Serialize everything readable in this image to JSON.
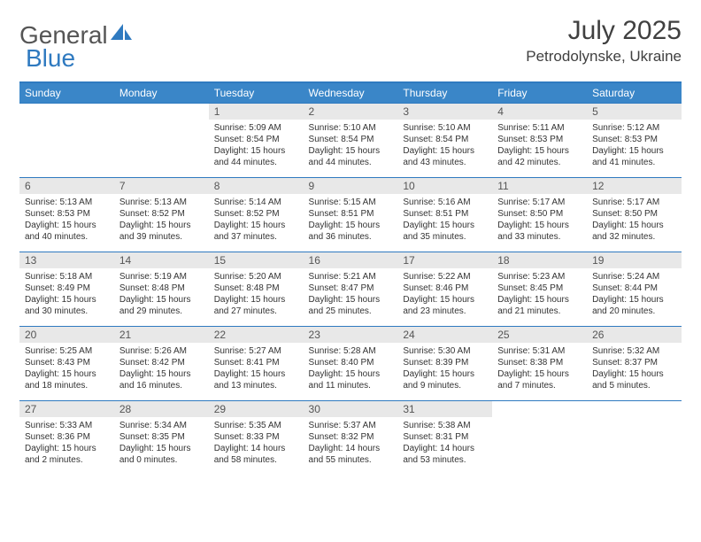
{
  "logo": {
    "word1": "General",
    "word2": "Blue"
  },
  "title": "July 2025",
  "location": "Petrodolynske, Ukraine",
  "colors": {
    "header_bg": "#3a86c8",
    "border": "#2f7ac0",
    "daynum_bg": "#e8e8e8",
    "text": "#333333",
    "logo_gray": "#555555",
    "logo_blue": "#2f7ac0",
    "white": "#ffffff"
  },
  "typography": {
    "title_fontsize": 30,
    "location_fontsize": 17,
    "logo_fontsize": 28,
    "weekday_fontsize": 12,
    "daynum_fontsize": 12,
    "body_fontsize": 10
  },
  "layout": {
    "cols": 7,
    "rows": 5,
    "first_weekday_index": 2
  },
  "weekdays": [
    "Sunday",
    "Monday",
    "Tuesday",
    "Wednesday",
    "Thursday",
    "Friday",
    "Saturday"
  ],
  "days": [
    {
      "n": 1,
      "sunrise": "5:09 AM",
      "sunset": "8:54 PM",
      "daylight": "15 hours and 44 minutes."
    },
    {
      "n": 2,
      "sunrise": "5:10 AM",
      "sunset": "8:54 PM",
      "daylight": "15 hours and 44 minutes."
    },
    {
      "n": 3,
      "sunrise": "5:10 AM",
      "sunset": "8:54 PM",
      "daylight": "15 hours and 43 minutes."
    },
    {
      "n": 4,
      "sunrise": "5:11 AM",
      "sunset": "8:53 PM",
      "daylight": "15 hours and 42 minutes."
    },
    {
      "n": 5,
      "sunrise": "5:12 AM",
      "sunset": "8:53 PM",
      "daylight": "15 hours and 41 minutes."
    },
    {
      "n": 6,
      "sunrise": "5:13 AM",
      "sunset": "8:53 PM",
      "daylight": "15 hours and 40 minutes."
    },
    {
      "n": 7,
      "sunrise": "5:13 AM",
      "sunset": "8:52 PM",
      "daylight": "15 hours and 39 minutes."
    },
    {
      "n": 8,
      "sunrise": "5:14 AM",
      "sunset": "8:52 PM",
      "daylight": "15 hours and 37 minutes."
    },
    {
      "n": 9,
      "sunrise": "5:15 AM",
      "sunset": "8:51 PM",
      "daylight": "15 hours and 36 minutes."
    },
    {
      "n": 10,
      "sunrise": "5:16 AM",
      "sunset": "8:51 PM",
      "daylight": "15 hours and 35 minutes."
    },
    {
      "n": 11,
      "sunrise": "5:17 AM",
      "sunset": "8:50 PM",
      "daylight": "15 hours and 33 minutes."
    },
    {
      "n": 12,
      "sunrise": "5:17 AM",
      "sunset": "8:50 PM",
      "daylight": "15 hours and 32 minutes."
    },
    {
      "n": 13,
      "sunrise": "5:18 AM",
      "sunset": "8:49 PM",
      "daylight": "15 hours and 30 minutes."
    },
    {
      "n": 14,
      "sunrise": "5:19 AM",
      "sunset": "8:48 PM",
      "daylight": "15 hours and 29 minutes."
    },
    {
      "n": 15,
      "sunrise": "5:20 AM",
      "sunset": "8:48 PM",
      "daylight": "15 hours and 27 minutes."
    },
    {
      "n": 16,
      "sunrise": "5:21 AM",
      "sunset": "8:47 PM",
      "daylight": "15 hours and 25 minutes."
    },
    {
      "n": 17,
      "sunrise": "5:22 AM",
      "sunset": "8:46 PM",
      "daylight": "15 hours and 23 minutes."
    },
    {
      "n": 18,
      "sunrise": "5:23 AM",
      "sunset": "8:45 PM",
      "daylight": "15 hours and 21 minutes."
    },
    {
      "n": 19,
      "sunrise": "5:24 AM",
      "sunset": "8:44 PM",
      "daylight": "15 hours and 20 minutes."
    },
    {
      "n": 20,
      "sunrise": "5:25 AM",
      "sunset": "8:43 PM",
      "daylight": "15 hours and 18 minutes."
    },
    {
      "n": 21,
      "sunrise": "5:26 AM",
      "sunset": "8:42 PM",
      "daylight": "15 hours and 16 minutes."
    },
    {
      "n": 22,
      "sunrise": "5:27 AM",
      "sunset": "8:41 PM",
      "daylight": "15 hours and 13 minutes."
    },
    {
      "n": 23,
      "sunrise": "5:28 AM",
      "sunset": "8:40 PM",
      "daylight": "15 hours and 11 minutes."
    },
    {
      "n": 24,
      "sunrise": "5:30 AM",
      "sunset": "8:39 PM",
      "daylight": "15 hours and 9 minutes."
    },
    {
      "n": 25,
      "sunrise": "5:31 AM",
      "sunset": "8:38 PM",
      "daylight": "15 hours and 7 minutes."
    },
    {
      "n": 26,
      "sunrise": "5:32 AM",
      "sunset": "8:37 PM",
      "daylight": "15 hours and 5 minutes."
    },
    {
      "n": 27,
      "sunrise": "5:33 AM",
      "sunset": "8:36 PM",
      "daylight": "15 hours and 2 minutes."
    },
    {
      "n": 28,
      "sunrise": "5:34 AM",
      "sunset": "8:35 PM",
      "daylight": "15 hours and 0 minutes."
    },
    {
      "n": 29,
      "sunrise": "5:35 AM",
      "sunset": "8:33 PM",
      "daylight": "14 hours and 58 minutes."
    },
    {
      "n": 30,
      "sunrise": "5:37 AM",
      "sunset": "8:32 PM",
      "daylight": "14 hours and 55 minutes."
    },
    {
      "n": 31,
      "sunrise": "5:38 AM",
      "sunset": "8:31 PM",
      "daylight": "14 hours and 53 minutes."
    }
  ],
  "labels": {
    "sunrise": "Sunrise:",
    "sunset": "Sunset:",
    "daylight": "Daylight:"
  }
}
